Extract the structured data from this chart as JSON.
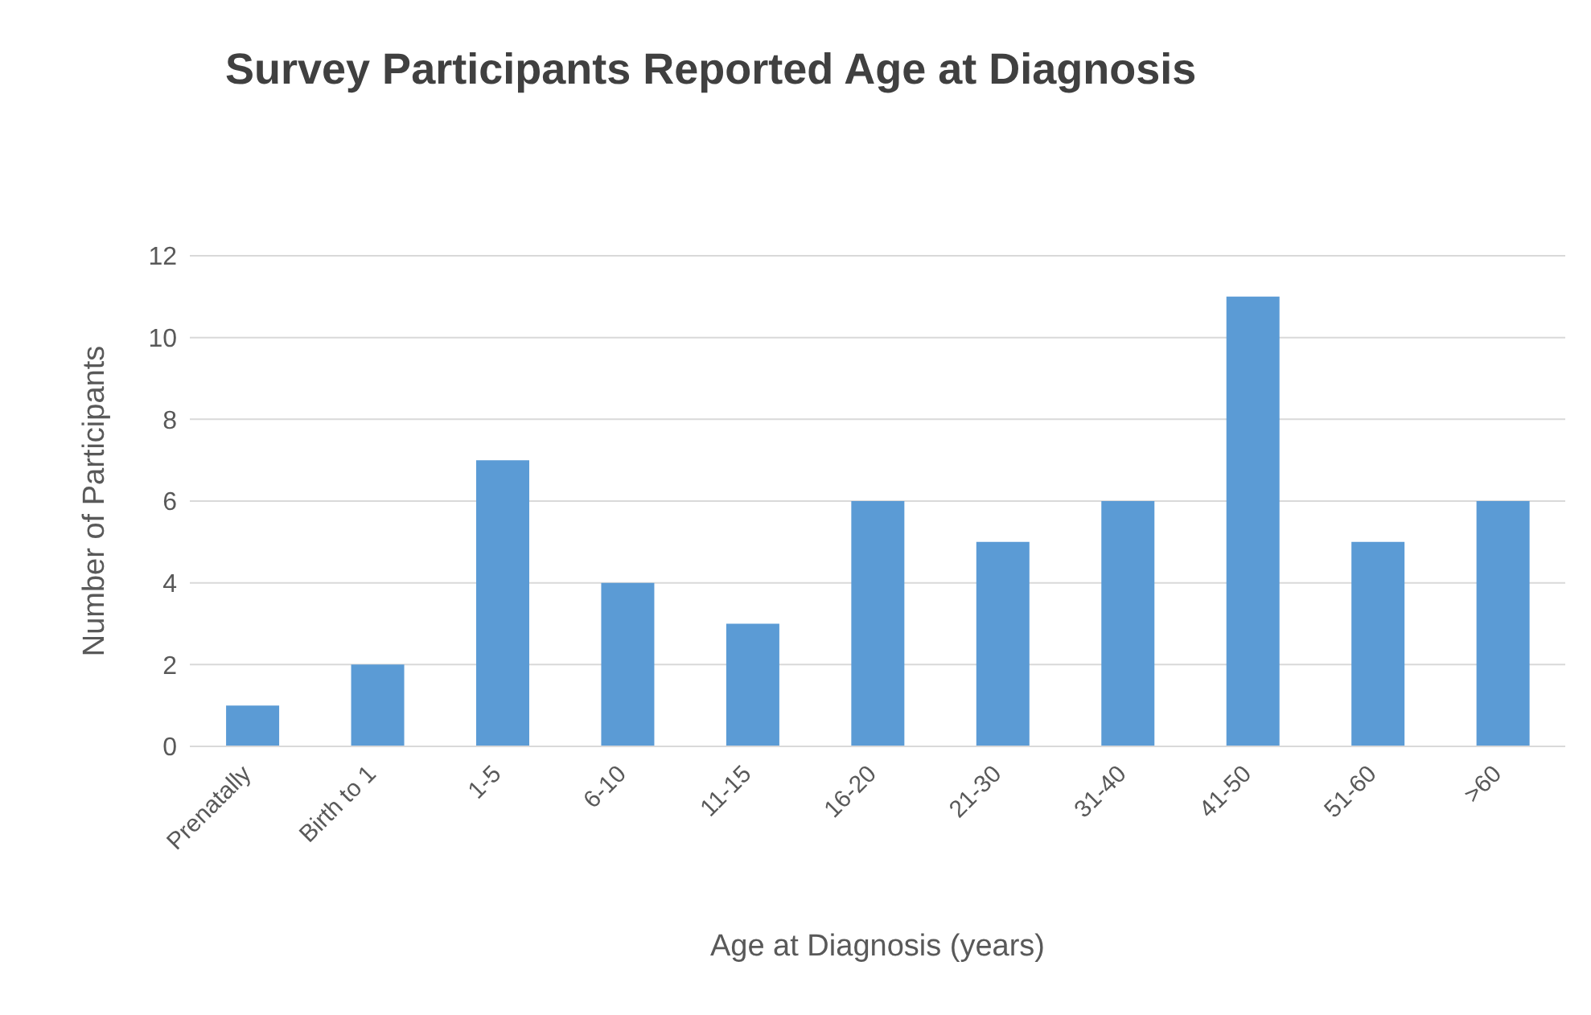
{
  "chart_data": {
    "type": "bar",
    "title": "Survey Participants Reported Age at Diagnosis",
    "xlabel": "Age at Diagnosis (years)",
    "ylabel": "Number of Participants",
    "categories": [
      "Prenatally",
      "Birth to 1",
      "1-5",
      "6-10",
      "11-15",
      "16-20",
      "21-30",
      "31-40",
      "41-50",
      "51-60",
      ">60"
    ],
    "values": [
      1,
      2,
      7,
      4,
      3,
      6,
      5,
      6,
      11,
      5,
      6
    ],
    "color": "#5b9bd5",
    "ylim": [
      0,
      12
    ],
    "yticks": [
      0,
      2,
      4,
      6,
      8,
      10,
      12
    ],
    "grid": "y",
    "legend": false
  }
}
